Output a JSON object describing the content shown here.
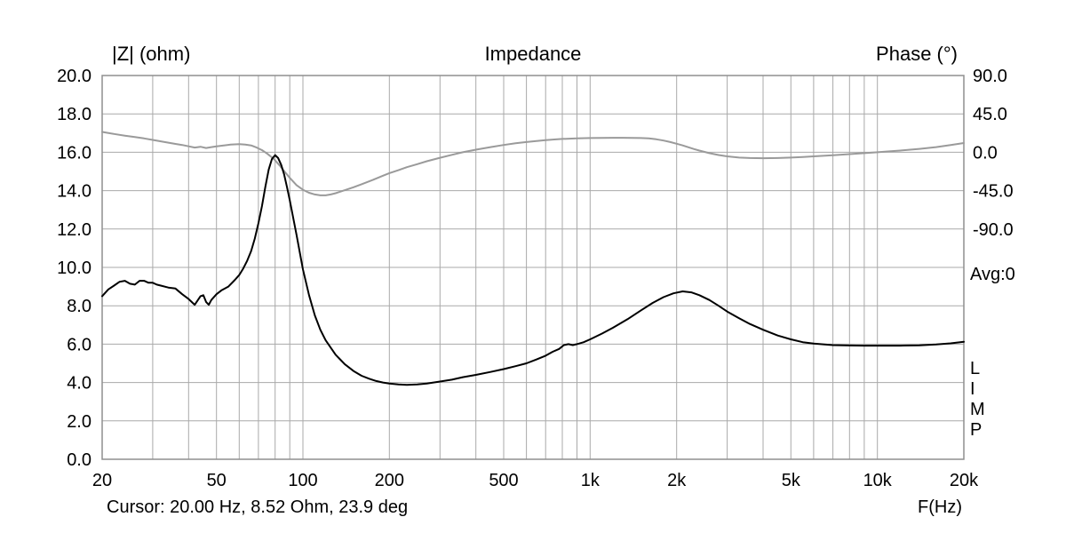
{
  "overlays": {
    "avg_label": "Avg:0",
    "app_letters": [
      "L",
      "I",
      "M",
      "P"
    ],
    "cursor_text": "Cursor: 20.00 Hz, 8.52 Ohm, 23.9 deg"
  },
  "chart_data": {
    "type": "line",
    "title": "Impedance",
    "xlabel": "F(Hz)",
    "x_scale": "log",
    "x_range": [
      20,
      20000
    ],
    "grid": true,
    "grid_color": "#a9a9a9",
    "frame_color": "#8f8f8f",
    "x_gridlines": [
      20,
      30,
      40,
      50,
      60,
      70,
      80,
      90,
      100,
      200,
      300,
      400,
      500,
      600,
      700,
      800,
      900,
      1000,
      2000,
      3000,
      4000,
      5000,
      6000,
      7000,
      8000,
      9000,
      10000,
      20000
    ],
    "x_ticks": [
      {
        "value": 20,
        "label": "20"
      },
      {
        "value": 50,
        "label": "50"
      },
      {
        "value": 100,
        "label": "100"
      },
      {
        "value": 200,
        "label": "200"
      },
      {
        "value": 500,
        "label": "500"
      },
      {
        "value": 1000,
        "label": "1k"
      },
      {
        "value": 2000,
        "label": "2k"
      },
      {
        "value": 5000,
        "label": "5k"
      },
      {
        "value": 10000,
        "label": "10k"
      },
      {
        "value": 20000,
        "label": "20k"
      }
    ],
    "left_axis": {
      "label": "|Z| (ohm)",
      "range": [
        0,
        20
      ],
      "ticks": [
        {
          "value": 20,
          "label": "20.0"
        },
        {
          "value": 18,
          "label": "18.0"
        },
        {
          "value": 16,
          "label": "16.0"
        },
        {
          "value": 14,
          "label": "14.0"
        },
        {
          "value": 12,
          "label": "12.0"
        },
        {
          "value": 10,
          "label": "10.0"
        },
        {
          "value": 8,
          "label": "8.0"
        },
        {
          "value": 6,
          "label": "6.0"
        },
        {
          "value": 4,
          "label": "4.0"
        },
        {
          "value": 2,
          "label": "2.0"
        },
        {
          "value": 0,
          "label": "0.0"
        }
      ]
    },
    "right_axis": {
      "label": "Phase (°)",
      "zero_deg_at_left_value": 16,
      "deg_per_left_division": 45,
      "ticks": [
        {
          "value": 90,
          "label": "90.0"
        },
        {
          "value": 45,
          "label": "45.0"
        },
        {
          "value": 0,
          "label": "0.0"
        },
        {
          "value": -45,
          "label": "-45.0"
        },
        {
          "value": -90,
          "label": "-90.0"
        }
      ]
    },
    "series": [
      {
        "name": "phase",
        "axis": "right",
        "color": "#9a9a9a",
        "points": [
          [
            20,
            23.9
          ],
          [
            22,
            21.5
          ],
          [
            24,
            19.5
          ],
          [
            26,
            17.8
          ],
          [
            28,
            16.2
          ],
          [
            30,
            14.5
          ],
          [
            33,
            12
          ],
          [
            36,
            9.8
          ],
          [
            38,
            8.5
          ],
          [
            40,
            7
          ],
          [
            42,
            5.5
          ],
          [
            44,
            6.5
          ],
          [
            46,
            5
          ],
          [
            48,
            6
          ],
          [
            50,
            7
          ],
          [
            53,
            8
          ],
          [
            56,
            9
          ],
          [
            60,
            9.5
          ],
          [
            63,
            9
          ],
          [
            66,
            8
          ],
          [
            69,
            5.5
          ],
          [
            72,
            2.5
          ],
          [
            75,
            -1.5
          ],
          [
            78,
            -6
          ],
          [
            80,
            -9.5
          ],
          [
            83,
            -15.5
          ],
          [
            86,
            -22
          ],
          [
            90,
            -30
          ],
          [
            95,
            -38.5
          ],
          [
            100,
            -44
          ],
          [
            105,
            -47.5
          ],
          [
            110,
            -49.5
          ],
          [
            115,
            -50.5
          ],
          [
            120,
            -50.5
          ],
          [
            125,
            -49.5
          ],
          [
            130,
            -48
          ],
          [
            140,
            -44.5
          ],
          [
            150,
            -41
          ],
          [
            160,
            -37.5
          ],
          [
            175,
            -32.5
          ],
          [
            190,
            -27.5
          ],
          [
            200,
            -24.5
          ],
          [
            215,
            -21
          ],
          [
            230,
            -17.5
          ],
          [
            250,
            -14
          ],
          [
            270,
            -10.5
          ],
          [
            300,
            -6.5
          ],
          [
            330,
            -3
          ],
          [
            360,
            0
          ],
          [
            400,
            3
          ],
          [
            450,
            6
          ],
          [
            500,
            8.5
          ],
          [
            550,
            10.5
          ],
          [
            600,
            12
          ],
          [
            650,
            13.2
          ],
          [
            700,
            14.2
          ],
          [
            750,
            15
          ],
          [
            800,
            15.6
          ],
          [
            900,
            16.3
          ],
          [
            1000,
            16.7
          ],
          [
            1100,
            16.9
          ],
          [
            1200,
            17
          ],
          [
            1300,
            17
          ],
          [
            1400,
            16.9
          ],
          [
            1500,
            16.7
          ],
          [
            1600,
            16.2
          ],
          [
            1700,
            15.2
          ],
          [
            1800,
            13.8
          ],
          [
            1900,
            12
          ],
          [
            2000,
            10
          ],
          [
            2100,
            8
          ],
          [
            2200,
            5.8
          ],
          [
            2300,
            3.8
          ],
          [
            2400,
            2
          ],
          [
            2600,
            -1
          ],
          [
            2800,
            -3.2
          ],
          [
            3000,
            -4.8
          ],
          [
            3300,
            -6.2
          ],
          [
            3600,
            -6.8
          ],
          [
            4000,
            -7
          ],
          [
            4500,
            -6.8
          ],
          [
            5000,
            -6.2
          ],
          [
            5500,
            -5.5
          ],
          [
            6000,
            -4.8
          ],
          [
            7000,
            -3.5
          ],
          [
            8000,
            -2.2
          ],
          [
            9000,
            -1
          ],
          [
            10000,
            0
          ],
          [
            11000,
            1
          ],
          [
            12000,
            2
          ],
          [
            13000,
            3
          ],
          [
            14000,
            4
          ],
          [
            16000,
            6
          ],
          [
            18000,
            8.5
          ],
          [
            20000,
            10.8
          ]
        ]
      },
      {
        "name": "impedance-magnitude",
        "axis": "left",
        "color": "#000000",
        "points": [
          [
            20,
            8.5
          ],
          [
            21,
            8.85
          ],
          [
            22,
            9.05
          ],
          [
            23,
            9.25
          ],
          [
            24,
            9.3
          ],
          [
            25,
            9.15
          ],
          [
            26,
            9.1
          ],
          [
            27,
            9.3
          ],
          [
            28,
            9.3
          ],
          [
            29,
            9.2
          ],
          [
            30,
            9.2
          ],
          [
            31,
            9.1
          ],
          [
            32,
            9.05
          ],
          [
            34,
            8.95
          ],
          [
            36,
            8.9
          ],
          [
            38,
            8.6
          ],
          [
            40,
            8.35
          ],
          [
            42,
            8.05
          ],
          [
            44,
            8.5
          ],
          [
            45,
            8.55
          ],
          [
            46,
            8.2
          ],
          [
            47,
            8.05
          ],
          [
            48,
            8.3
          ],
          [
            50,
            8.6
          ],
          [
            52,
            8.8
          ],
          [
            55,
            9.0
          ],
          [
            58,
            9.35
          ],
          [
            60,
            9.6
          ],
          [
            62,
            9.95
          ],
          [
            64,
            10.35
          ],
          [
            66,
            10.85
          ],
          [
            68,
            11.5
          ],
          [
            70,
            12.3
          ],
          [
            72,
            13.2
          ],
          [
            74,
            14.2
          ],
          [
            76,
            15.1
          ],
          [
            78,
            15.65
          ],
          [
            80,
            15.85
          ],
          [
            82,
            15.7
          ],
          [
            84,
            15.35
          ],
          [
            86,
            14.85
          ],
          [
            88,
            14.2
          ],
          [
            90,
            13.5
          ],
          [
            95,
            11.7
          ],
          [
            100,
            9.9
          ],
          [
            105,
            8.55
          ],
          [
            110,
            7.5
          ],
          [
            115,
            6.75
          ],
          [
            120,
            6.2
          ],
          [
            130,
            5.45
          ],
          [
            140,
            4.95
          ],
          [
            150,
            4.6
          ],
          [
            160,
            4.35
          ],
          [
            170,
            4.2
          ],
          [
            180,
            4.08
          ],
          [
            190,
            4.0
          ],
          [
            200,
            3.95
          ],
          [
            215,
            3.9
          ],
          [
            230,
            3.88
          ],
          [
            250,
            3.9
          ],
          [
            270,
            3.95
          ],
          [
            300,
            4.05
          ],
          [
            330,
            4.15
          ],
          [
            360,
            4.28
          ],
          [
            400,
            4.4
          ],
          [
            450,
            4.55
          ],
          [
            500,
            4.7
          ],
          [
            550,
            4.85
          ],
          [
            600,
            5.0
          ],
          [
            650,
            5.2
          ],
          [
            700,
            5.4
          ],
          [
            740,
            5.6
          ],
          [
            780,
            5.75
          ],
          [
            810,
            5.95
          ],
          [
            840,
            6.0
          ],
          [
            870,
            5.95
          ],
          [
            900,
            6.0
          ],
          [
            950,
            6.1
          ],
          [
            1000,
            6.25
          ],
          [
            1100,
            6.55
          ],
          [
            1200,
            6.85
          ],
          [
            1350,
            7.3
          ],
          [
            1500,
            7.75
          ],
          [
            1650,
            8.15
          ],
          [
            1800,
            8.45
          ],
          [
            1950,
            8.65
          ],
          [
            2100,
            8.75
          ],
          [
            2250,
            8.7
          ],
          [
            2400,
            8.55
          ],
          [
            2600,
            8.3
          ],
          [
            2800,
            8.0
          ],
          [
            3000,
            7.7
          ],
          [
            3300,
            7.35
          ],
          [
            3600,
            7.05
          ],
          [
            4000,
            6.75
          ],
          [
            4500,
            6.45
          ],
          [
            5000,
            6.25
          ],
          [
            5500,
            6.1
          ],
          [
            6000,
            6.03
          ],
          [
            7000,
            5.95
          ],
          [
            8000,
            5.93
          ],
          [
            9000,
            5.92
          ],
          [
            10000,
            5.92
          ],
          [
            12000,
            5.92
          ],
          [
            14000,
            5.94
          ],
          [
            16000,
            5.98
          ],
          [
            18000,
            6.04
          ],
          [
            20000,
            6.12
          ]
        ]
      }
    ]
  }
}
